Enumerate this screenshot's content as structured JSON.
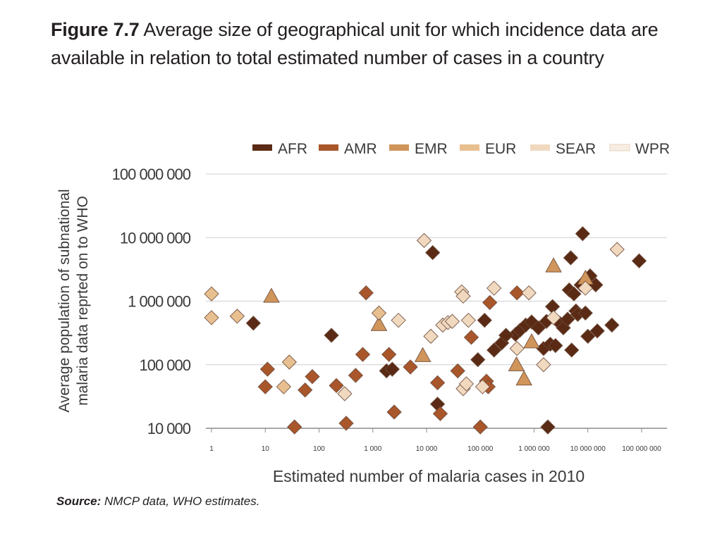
{
  "figure": {
    "number": "Figure 7.7",
    "title": "Average size of geographical unit for which incidence data are available in relation to total estimated number of cases in a country"
  },
  "source": {
    "label": "Source:",
    "text": "NMCP data, WHO estimates."
  },
  "chart_data": {
    "type": "scatter",
    "title": "",
    "xlabel": "Estimated number of malaria cases in 2010",
    "ylabel_lines": [
      "Average population of subnational",
      "malaria data reprted on to WHO"
    ],
    "x_scale": "log",
    "y_scale": "log",
    "xlim": [
      1,
      100000000
    ],
    "ylim": [
      10000,
      100000000
    ],
    "x_ticks": [
      {
        "value": 1,
        "label": "1"
      },
      {
        "value": 10,
        "label": "10"
      },
      {
        "value": 100,
        "label": "100"
      },
      {
        "value": 1000,
        "label": "1 000"
      },
      {
        "value": 10000,
        "label": "10 000"
      },
      {
        "value": 100000,
        "label": "100 000"
      },
      {
        "value": 1000000,
        "label": "1 000 000"
      },
      {
        "value": 10000000,
        "label": "10 000 000"
      },
      {
        "value": 100000000,
        "label": "100 000 000"
      }
    ],
    "y_ticks": [
      {
        "value": 10000,
        "label": "10 000"
      },
      {
        "value": 100000,
        "label": "100 000"
      },
      {
        "value": 1000000,
        "label": "1 000 000"
      },
      {
        "value": 10000000,
        "label": "10 000 000"
      },
      {
        "value": 100000000,
        "label": "100 000 000"
      }
    ],
    "grid": "horizontal",
    "legend_position": "top-right",
    "series": [
      {
        "name": "AFR",
        "color": "#5a2a14",
        "marker": "diamond",
        "points": [
          [
            6,
            450000
          ],
          [
            170,
            290000
          ],
          [
            13000,
            5800000
          ],
          [
            16000,
            24000
          ],
          [
            1800,
            80000
          ],
          [
            2300,
            85000
          ],
          [
            90000,
            120000
          ],
          [
            180000,
            170000
          ],
          [
            250000,
            220000
          ],
          [
            450000,
            300000
          ],
          [
            550000,
            350000
          ],
          [
            700000,
            420000
          ],
          [
            900000,
            470000
          ],
          [
            1200000,
            380000
          ],
          [
            1700000,
            480000
          ],
          [
            2200000,
            820000
          ],
          [
            1500000,
            180000
          ],
          [
            2000000,
            210000
          ],
          [
            3000000,
            450000
          ],
          [
            3500000,
            380000
          ],
          [
            4200000,
            520000
          ],
          [
            4500000,
            1500000
          ],
          [
            4800000,
            4800000
          ],
          [
            5500000,
            1300000
          ],
          [
            6000000,
            700000
          ],
          [
            6500000,
            620000
          ],
          [
            7500000,
            1800000
          ],
          [
            8000000,
            11500000
          ],
          [
            9000000,
            650000
          ],
          [
            11000000,
            2500000
          ],
          [
            10000000,
            280000
          ],
          [
            14000000,
            1800000
          ],
          [
            15000000,
            340000
          ],
          [
            28000000,
            420000
          ],
          [
            90000000,
            4300000
          ],
          [
            5000000,
            170000
          ],
          [
            2500000,
            200000
          ],
          [
            1800000,
            10500
          ],
          [
            300000,
            290000
          ],
          [
            120000,
            500000
          ]
        ]
      },
      {
        "name": "AMR",
        "color": "#a9562a",
        "marker": "diamond",
        "points": [
          [
            10,
            45000
          ],
          [
            11,
            85000
          ],
          [
            35,
            10500
          ],
          [
            55,
            40000
          ],
          [
            75,
            65000
          ],
          [
            210,
            47000
          ],
          [
            320,
            12000
          ],
          [
            480,
            68000
          ],
          [
            650,
            145000
          ],
          [
            750,
            1350000
          ],
          [
            2000,
            145000
          ],
          [
            2500,
            18000
          ],
          [
            5000,
            92000
          ],
          [
            16000,
            52000
          ],
          [
            18000,
            17000
          ],
          [
            38000,
            80000
          ],
          [
            68000,
            270000
          ],
          [
            100000,
            10500
          ],
          [
            130000,
            55000
          ],
          [
            140000,
            45000
          ],
          [
            150000,
            950000
          ],
          [
            480000,
            1350000
          ]
        ]
      },
      {
        "name": "EMR",
        "color": "#d0955a",
        "marker": "triangle",
        "points": [
          [
            13,
            1200000
          ],
          [
            1300,
            430000
          ],
          [
            8500,
            140000
          ],
          [
            470000,
            100000
          ],
          [
            650000,
            60000
          ],
          [
            900000,
            230000
          ],
          [
            2300000,
            3600000
          ],
          [
            9000000,
            2300000
          ]
        ]
      },
      {
        "name": "EUR",
        "color": "#e8bf8f",
        "marker": "diamond",
        "points": [
          [
            1,
            1300000
          ],
          [
            1,
            550000
          ],
          [
            3,
            580000
          ],
          [
            22,
            45000
          ],
          [
            28,
            110000
          ],
          [
            1300,
            650000
          ]
        ]
      },
      {
        "name": "SEAR",
        "color": "#f1d9c0",
        "marker": "diamond",
        "points": [
          [
            300,
            35000
          ],
          [
            3000,
            500000
          ],
          [
            9000,
            9000000
          ],
          [
            12000,
            280000
          ],
          [
            20000,
            420000
          ],
          [
            25000,
            460000
          ],
          [
            30000,
            480000
          ],
          [
            45000,
            1400000
          ],
          [
            48000,
            1200000
          ],
          [
            48000,
            42000
          ],
          [
            55000,
            50000
          ],
          [
            60000,
            500000
          ],
          [
            110000,
            45000
          ],
          [
            180000,
            1600000
          ],
          [
            480000,
            180000
          ],
          [
            800000,
            1350000
          ],
          [
            1500000,
            100000
          ],
          [
            2300000,
            550000
          ],
          [
            9000000,
            1600000
          ],
          [
            35000000,
            6500000
          ]
        ]
      },
      {
        "name": "WPR",
        "color": "#f8ede2",
        "marker": "diamond",
        "points": []
      }
    ]
  }
}
